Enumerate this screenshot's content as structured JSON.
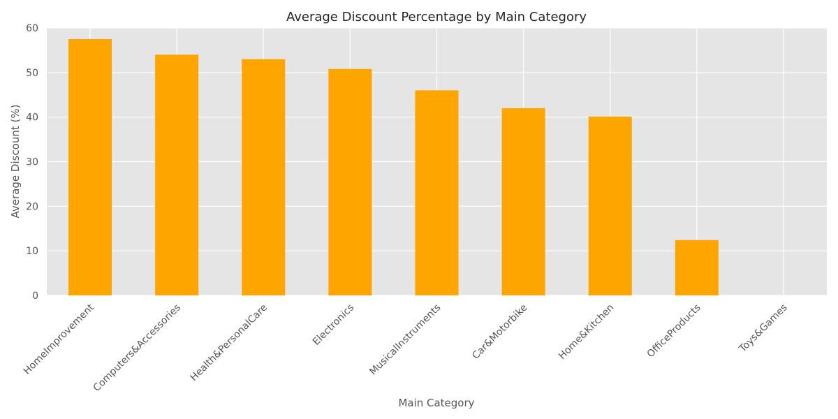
{
  "chart_data": {
    "type": "bar",
    "title": "Average Discount Percentage by Main Category",
    "xlabel": "Main Category",
    "ylabel": "Average Discount (%)",
    "categories": [
      "HomeImprovement",
      "Computers&Accessories",
      "Health&PersonalCare",
      "Electronics",
      "MusicalInstruments",
      "Car&Motorbike",
      "Home&Kitchen",
      "OfficeProducts",
      "Toys&Games"
    ],
    "values": [
      57.5,
      54.0,
      53.0,
      50.8,
      46.0,
      42.0,
      40.1,
      12.4,
      0.0
    ],
    "ylim": [
      0,
      60
    ],
    "yticks": [
      0,
      10,
      20,
      30,
      40,
      50,
      60
    ],
    "grid": true,
    "colors": {
      "bar": "#FFA500",
      "plot_background": "#E5E5E5",
      "grid": "#FFFFFF",
      "text": "#555555",
      "title": "#262626"
    }
  }
}
